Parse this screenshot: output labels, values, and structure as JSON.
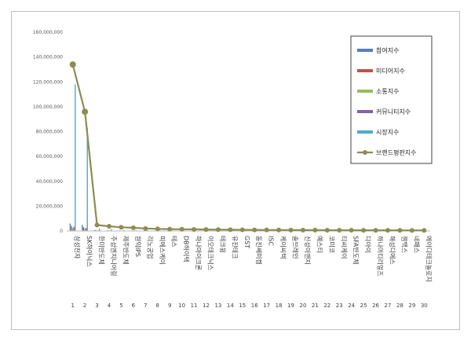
{
  "chart_data": {
    "type": "bar",
    "title": "",
    "xlabel": "",
    "ylabel": "",
    "ylim": [
      0,
      160000000
    ],
    "yticks": [
      0,
      20000000,
      40000000,
      60000000,
      80000000,
      100000000,
      120000000,
      140000000,
      160000000
    ],
    "ytick_labels": [
      "0",
      "20,000,000",
      "40,000,000",
      "60,000,000",
      "80,000,000",
      "100,000,000",
      "120,000,000",
      "140,000,000",
      "160,000,000"
    ],
    "grid": false,
    "legend_position": "right",
    "ranks": [
      "1",
      "2",
      "3",
      "4",
      "5",
      "6",
      "7",
      "8",
      "9",
      "10",
      "11",
      "12",
      "13",
      "14",
      "15",
      "16",
      "17",
      "18",
      "19",
      "20",
      "21",
      "22",
      "23",
      "24",
      "25",
      "26",
      "27",
      "28",
      "29",
      "30"
    ],
    "categories": [
      "삼성전자",
      "SK하이닉스",
      "한미반도체",
      "주성엔지니어링",
      "제주반도체",
      "원익IPS",
      "리노공업",
      "피에스케이",
      "테스",
      "DB하이텍",
      "하나마이크론",
      "이오테크닉스",
      "테크윙",
      "유진테크",
      "GST",
      "동진쎄미켐",
      "ISC",
      "케이씨텍",
      "솔브레인",
      "신성이엔지",
      "예스티",
      "코미코",
      "티씨케이",
      "SFA반도체",
      "디아이",
      "하나머티리얼즈",
      "해성디에스",
      "젬백스",
      "네패스",
      "에이디테크놀로지"
    ],
    "series": [
      {
        "name": "참여지수",
        "color": "#4f81bd",
        "type": "bar",
        "values": [
          6000000,
          5000000,
          600000,
          400000,
          300000,
          300000,
          200000,
          200000,
          150000,
          150000,
          150000,
          150000,
          120000,
          120000,
          100000,
          100000,
          100000,
          100000,
          90000,
          90000,
          80000,
          80000,
          80000,
          70000,
          70000,
          70000,
          60000,
          60000,
          60000,
          50000
        ]
      },
      {
        "name": "미디어지수",
        "color": "#c0504d",
        "type": "bar",
        "values": [
          4000000,
          3000000,
          800000,
          600000,
          500000,
          500000,
          400000,
          400000,
          300000,
          300000,
          300000,
          300000,
          250000,
          250000,
          200000,
          200000,
          200000,
          200000,
          180000,
          180000,
          160000,
          160000,
          150000,
          150000,
          140000,
          140000,
          130000,
          130000,
          120000,
          120000
        ]
      },
      {
        "name": "소통지수",
        "color": "#9bbb59",
        "type": "bar",
        "values": [
          2500000,
          2000000,
          400000,
          300000,
          250000,
          250000,
          200000,
          200000,
          150000,
          150000,
          150000,
          150000,
          120000,
          120000,
          100000,
          100000,
          100000,
          100000,
          90000,
          90000,
          80000,
          80000,
          80000,
          70000,
          70000,
          70000,
          60000,
          60000,
          60000,
          50000
        ]
      },
      {
        "name": "커뮤니티지수",
        "color": "#8064a2",
        "type": "bar",
        "values": [
          3500000,
          2500000,
          500000,
          400000,
          300000,
          300000,
          250000,
          250000,
          200000,
          200000,
          200000,
          200000,
          150000,
          150000,
          120000,
          120000,
          120000,
          120000,
          100000,
          100000,
          100000,
          100000,
          90000,
          90000,
          80000,
          80000,
          80000,
          70000,
          70000,
          70000
        ]
      },
      {
        "name": "시장지수",
        "color": "#4bacc6",
        "type": "bar",
        "values": [
          118000000,
          83000000,
          2000000,
          1500000,
          1000000,
          800000,
          600000,
          500000,
          400000,
          400000,
          350000,
          350000,
          300000,
          300000,
          250000,
          250000,
          250000,
          200000,
          200000,
          200000,
          180000,
          180000,
          160000,
          160000,
          150000,
          150000,
          140000,
          140000,
          130000,
          120000
        ]
      },
      {
        "name": "브랜드평판지수",
        "color": "#8c8c55",
        "type": "line",
        "values": [
          134000000,
          96000000,
          4800000,
          3800000,
          3000000,
          2600000,
          2000000,
          1700000,
          1500000,
          1400000,
          1300000,
          1200000,
          1100000,
          1000000,
          950000,
          900000,
          850000,
          800000,
          750000,
          700000,
          680000,
          650000,
          620000,
          600000,
          580000,
          560000,
          540000,
          520000,
          500000,
          480000
        ]
      }
    ]
  }
}
